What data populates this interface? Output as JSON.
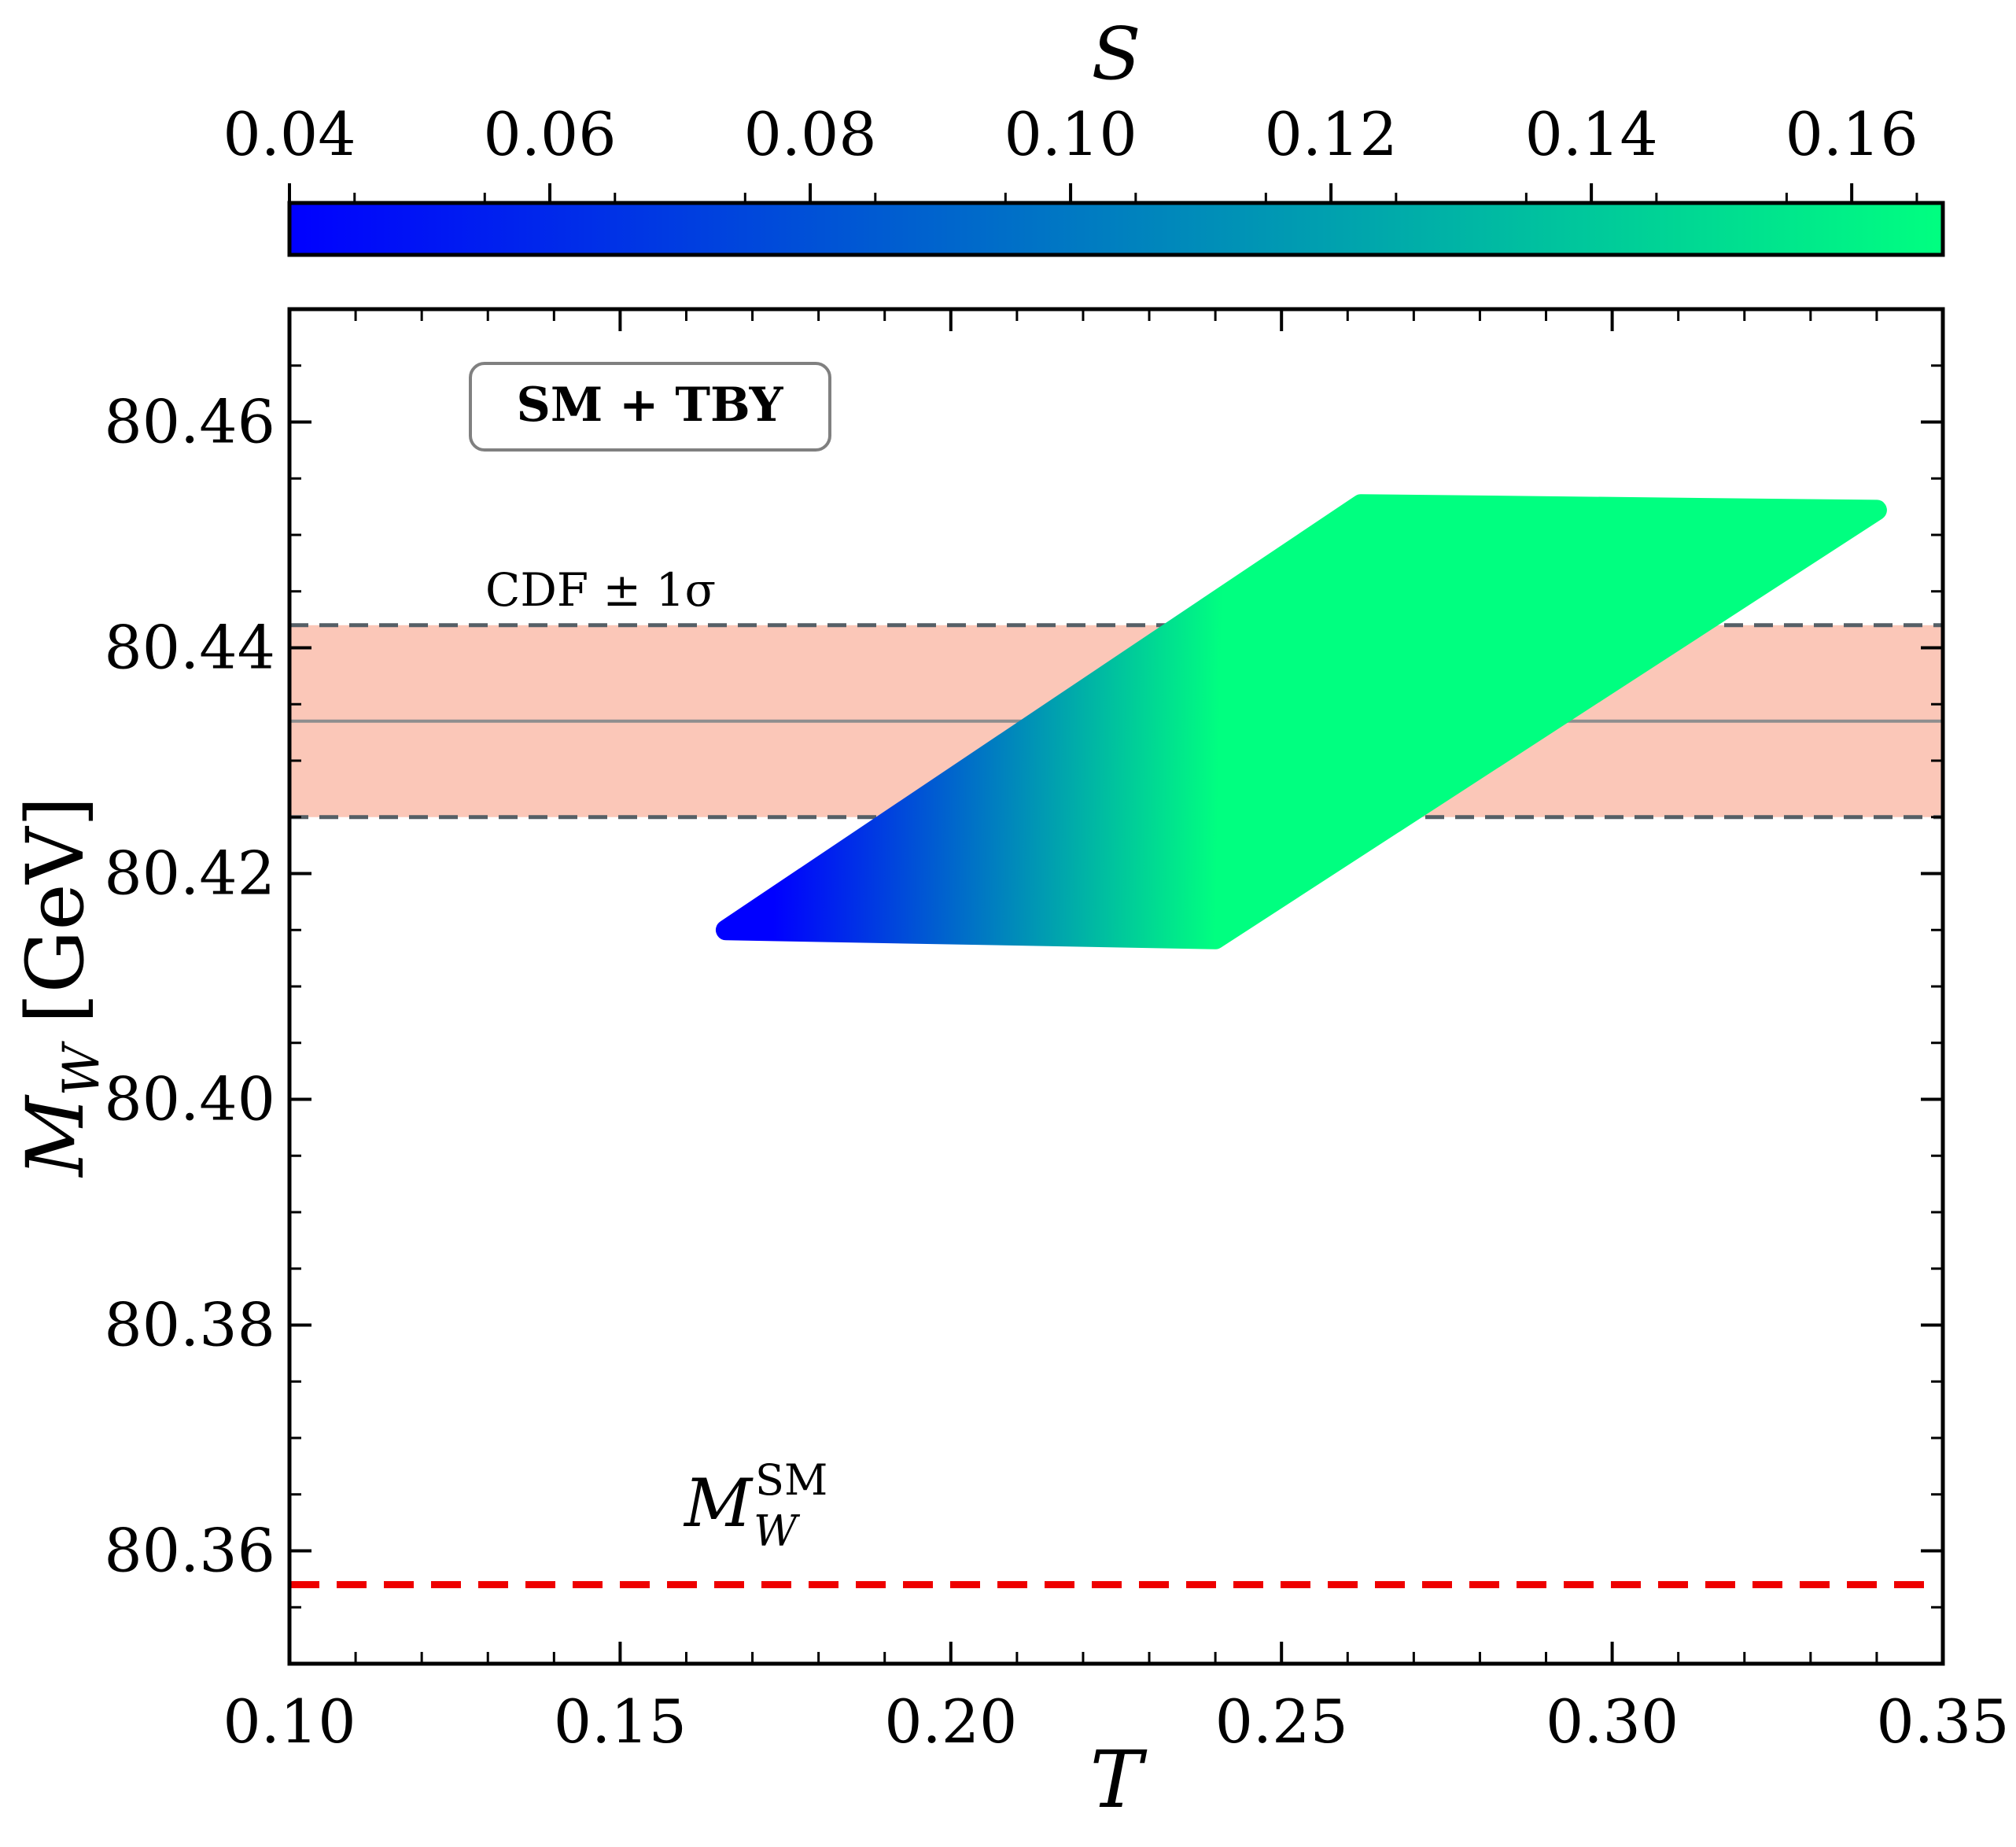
{
  "chart_data": {
    "type": "scatter",
    "xlabel": "T",
    "ylabel": "M",
    "ylabel_sub": "W",
    "ylabel_unit": "[GeV]",
    "xlim": [
      0.1,
      0.35
    ],
    "ylim": [
      80.35,
      80.47
    ],
    "x_ticks": [
      0.1,
      0.15,
      0.2,
      0.25,
      0.3,
      0.35
    ],
    "x_tick_labels": [
      "0.10",
      "0.15",
      "0.20",
      "0.25",
      "0.30",
      "0.35"
    ],
    "y_ticks": [
      80.36,
      80.38,
      80.4,
      80.42,
      80.44,
      80.46
    ],
    "y_tick_labels": [
      "80.36",
      "80.38",
      "80.40",
      "80.42",
      "80.44",
      "80.46"
    ],
    "grid": false,
    "model_label": "SM + TBY",
    "colorbar": {
      "label": "S",
      "range": [
        0.04,
        0.167
      ],
      "ticks": [
        0.04,
        0.06,
        0.08,
        0.1,
        0.12,
        0.14,
        0.16
      ],
      "tick_labels": [
        "0.04",
        "0.06",
        "0.08",
        "0.10",
        "0.12",
        "0.14",
        "0.16"
      ],
      "color_low": "#0000ff",
      "color_high": "#00ff80"
    },
    "scan_region": {
      "description_of_shape": "parallelogram",
      "corners_T_MW": [
        [
          0.166,
          80.415
        ],
        [
          0.24,
          80.4142
        ],
        [
          0.34,
          80.4522
        ],
        [
          0.262,
          80.4527
        ]
      ]
    },
    "cdf_band": {
      "label": "CDF ± 1σ",
      "central": 80.4335,
      "lower": 80.425,
      "upper": 80.442,
      "band_color": "#fbc7b8",
      "line_color": "#555f66",
      "central_color": "#8e8e8e"
    },
    "sm_line": {
      "label_main": "M",
      "label_sub": "W",
      "label_sup": "SM",
      "value": 80.357,
      "color": "#ee0000"
    }
  }
}
